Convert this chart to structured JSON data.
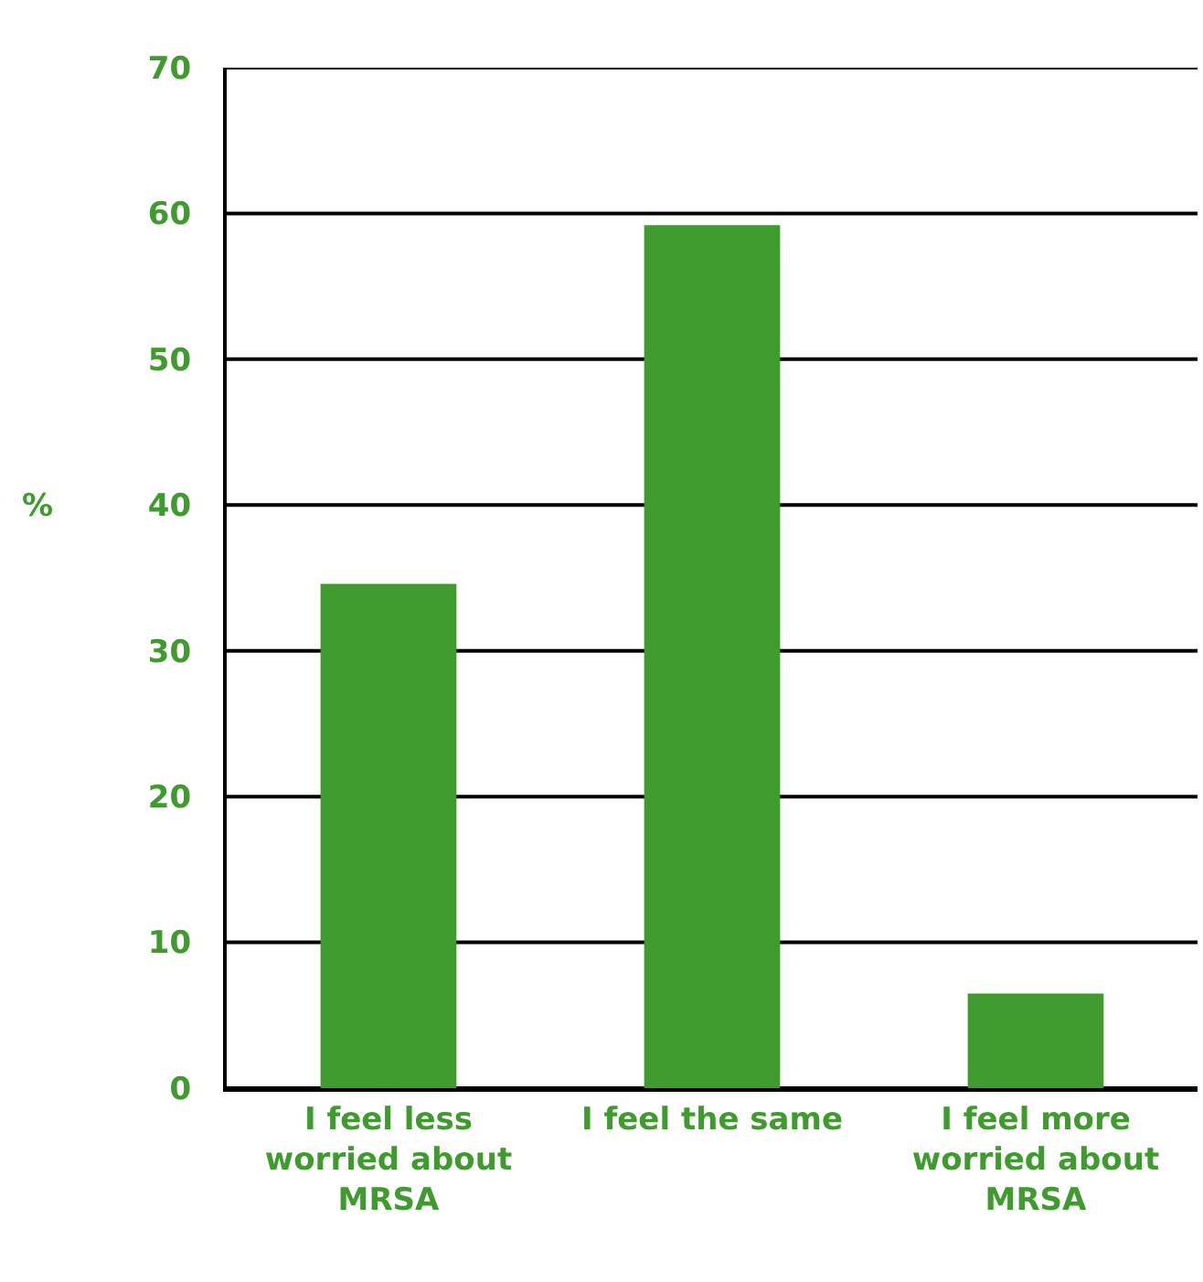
{
  "chart_data": {
    "type": "bar",
    "ylabel": "%",
    "categories": [
      "I feel less worried about MRSA",
      "I feel the same",
      "I feel more worried about MRSA"
    ],
    "series": [
      {
        "color": "#3f9b2e",
        "values": [
          34.6,
          59.2,
          6.5
        ]
      }
    ],
    "ylim": [
      0,
      70
    ],
    "yticks": [
      0,
      10,
      20,
      30,
      40,
      50,
      60,
      70
    ],
    "grid": "y"
  }
}
